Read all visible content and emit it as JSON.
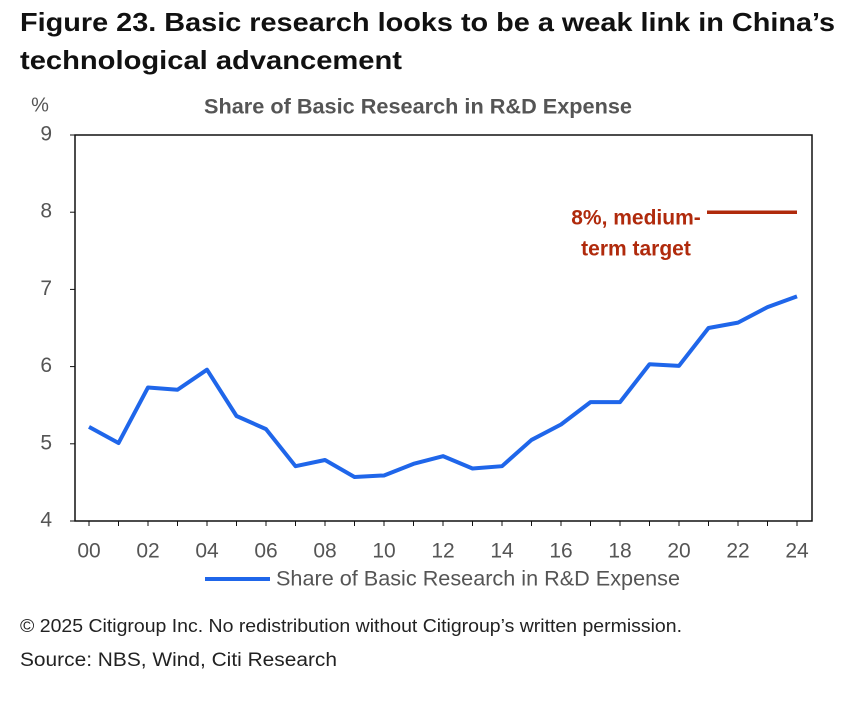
{
  "title_lines": [
    "Figure 23. Basic research looks to be a weak link in China’s",
    "technological advancement"
  ],
  "chart_data": {
    "type": "line",
    "title": "Share of Basic Research in R&D Expense",
    "y_unit": "%",
    "categories": [
      "00",
      null,
      "02",
      null,
      "04",
      null,
      "06",
      null,
      "08",
      null,
      "10",
      null,
      "12",
      null,
      "14",
      null,
      "16",
      null,
      "18",
      null,
      "20",
      null,
      "22",
      null,
      "24"
    ],
    "series": [
      {
        "name": "Share of Basic Research in R&D Expense",
        "color": "#1f66ea",
        "values": [
          5.22,
          5.01,
          5.73,
          5.7,
          5.96,
          5.36,
          5.19,
          4.71,
          4.79,
          4.57,
          4.59,
          4.74,
          4.84,
          4.68,
          4.71,
          5.05,
          5.25,
          5.54,
          5.54,
          6.03,
          6.01,
          6.5,
          6.57,
          6.77,
          6.91
        ]
      }
    ],
    "target": {
      "value": 8,
      "color": "#b02a0c",
      "label_lines": [
        "8%, medium-",
        "term target"
      ]
    },
    "ylim": [
      4,
      9
    ],
    "yticks": [
      4,
      5,
      6,
      7,
      8,
      9
    ]
  },
  "footer": {
    "copyright": "© 2025 Citigroup Inc. No redistribution without Citigroup’s written permission.",
    "source": "Source: NBS, Wind, Citi Research"
  }
}
